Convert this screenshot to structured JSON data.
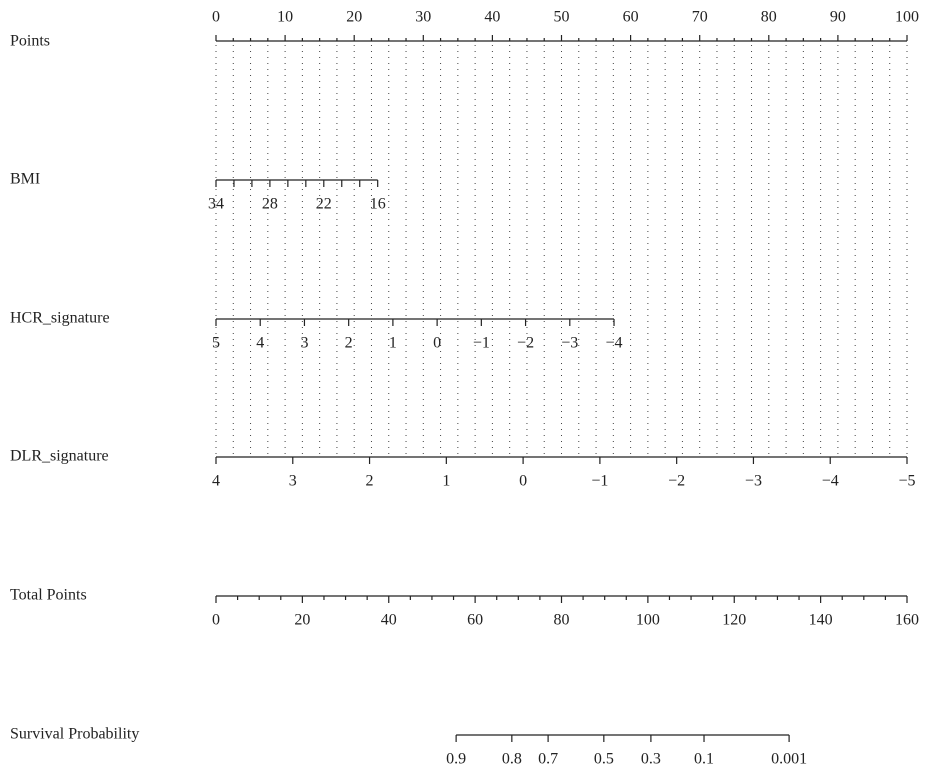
{
  "chart_data": {
    "type": "nomogram",
    "grid": true,
    "points_axis": {
      "name": "Points",
      "lim": [
        0,
        100
      ],
      "ticks": [
        0,
        10,
        20,
        30,
        40,
        50,
        60,
        70,
        80,
        90,
        100
      ],
      "minor_ticks": [
        2.5,
        5,
        7.5,
        12.5,
        15,
        17.5,
        22.5,
        25,
        27.5,
        32.5,
        35,
        37.5,
        42.5,
        45,
        47.5,
        52.5,
        55,
        57.5,
        62.5,
        65,
        67.5,
        72.5,
        75,
        77.5,
        82.5,
        85,
        87.5,
        92.5,
        95,
        97.5
      ]
    },
    "variables": [
      {
        "name": "BMI",
        "lim": [
          34,
          16
        ],
        "points_lim": [
          0,
          23.4
        ],
        "ticks": [
          34,
          28,
          22,
          16
        ],
        "minor_ticks": [
          32,
          30,
          26,
          24,
          20,
          18
        ]
      },
      {
        "name": "HCR_signature",
        "lim": [
          5,
          -4
        ],
        "points_lim": [
          0,
          57.6
        ],
        "ticks": [
          5,
          4,
          3,
          2,
          1,
          0,
          {
            "value": -1,
            "label": "−1"
          },
          {
            "value": -2,
            "label": "−2"
          },
          {
            "value": -3,
            "label": "−3"
          },
          {
            "value": -4,
            "label": "−4"
          }
        ]
      },
      {
        "name": "DLR_signature",
        "lim": [
          4,
          -5
        ],
        "points_lim": [
          0,
          100
        ],
        "ticks": [
          4,
          3,
          2,
          1,
          0,
          {
            "value": -1,
            "label": "−1"
          },
          {
            "value": -2,
            "label": "−2"
          },
          {
            "value": -3,
            "label": "−3"
          },
          {
            "value": -4,
            "label": "−4"
          },
          {
            "value": -5,
            "label": "−5"
          }
        ]
      }
    ],
    "total_points": {
      "name": "Total Points",
      "lim": [
        0,
        160
      ],
      "ticks": [
        0,
        20,
        40,
        60,
        80,
        100,
        120,
        140,
        160
      ],
      "minor_ticks": [
        5,
        10,
        15,
        25,
        30,
        35,
        45,
        50,
        55,
        65,
        70,
        75,
        85,
        90,
        95,
        105,
        110,
        115,
        125,
        130,
        135,
        145,
        150,
        155
      ]
    },
    "survival": {
      "name": "Survival Probability",
      "ticks": [
        {
          "value": 0.9,
          "points": 55.6
        },
        {
          "value": 0.8,
          "points": 68.5
        },
        {
          "value": 0.7,
          "points": 76.9
        },
        {
          "value": 0.5,
          "points": 89.8
        },
        {
          "value": 0.3,
          "points": 100.7
        },
        {
          "value": 0.1,
          "points": 113.0
        },
        {
          "value": 0.001,
          "points": 132.7
        }
      ]
    }
  }
}
